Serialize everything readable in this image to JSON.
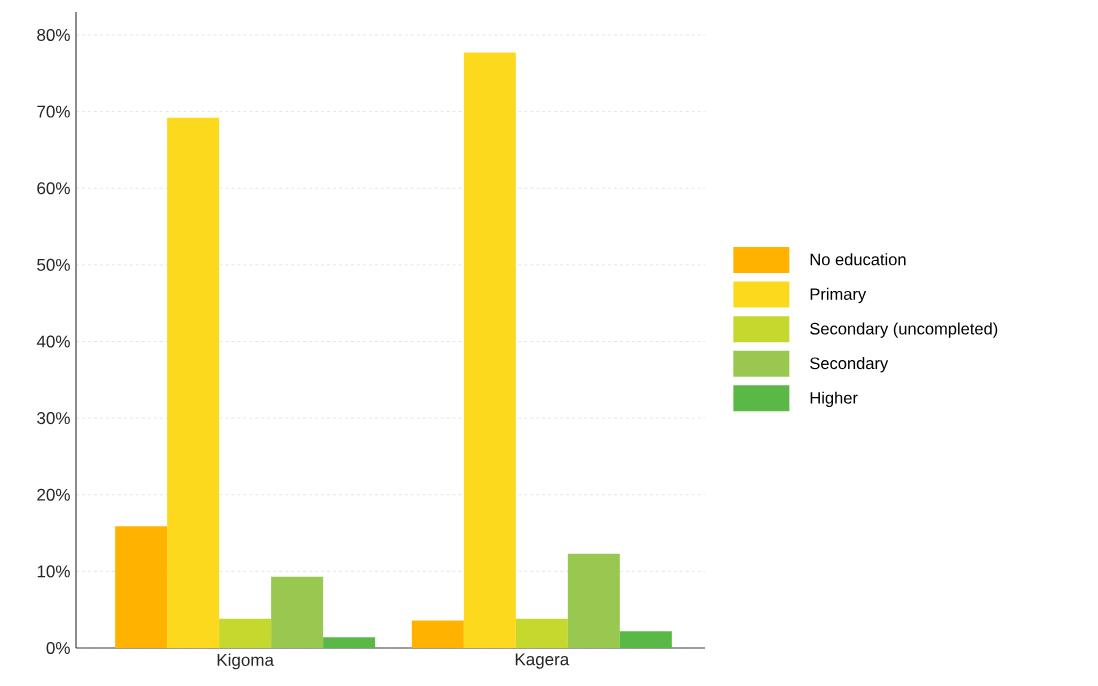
{
  "chart_data": {
    "type": "bar",
    "categories": [
      "Kigoma",
      "Kagera"
    ],
    "series": [
      {
        "name": "No education",
        "color": "#ffb300",
        "values": [
          15.9,
          3.6
        ]
      },
      {
        "name": "Primary",
        "color": "#fdd91e",
        "values": [
          69.2,
          77.7
        ]
      },
      {
        "name": "Secondary (uncompleted)",
        "color": "#c5d82d",
        "values": [
          3.8,
          3.8
        ]
      },
      {
        "name": "Secondary",
        "color": "#98c84f",
        "values": [
          9.3,
          12.3
        ]
      },
      {
        "name": "Higher",
        "color": "#5ab946",
        "values": [
          1.4,
          2.2
        ]
      }
    ],
    "ylim": [
      0,
      83
    ],
    "yticks": [
      {
        "value": 0,
        "label": "0%"
      },
      {
        "value": 10,
        "label": "10%"
      },
      {
        "value": 20,
        "label": "20%"
      },
      {
        "value": 30,
        "label": "30%"
      },
      {
        "value": 40,
        "label": "40%"
      },
      {
        "value": 50,
        "label": "50%"
      },
      {
        "value": 60,
        "label": "60%"
      },
      {
        "value": 70,
        "label": "70%"
      },
      {
        "value": 80,
        "label": "80%"
      }
    ],
    "grid": "y",
    "legend": "right"
  }
}
